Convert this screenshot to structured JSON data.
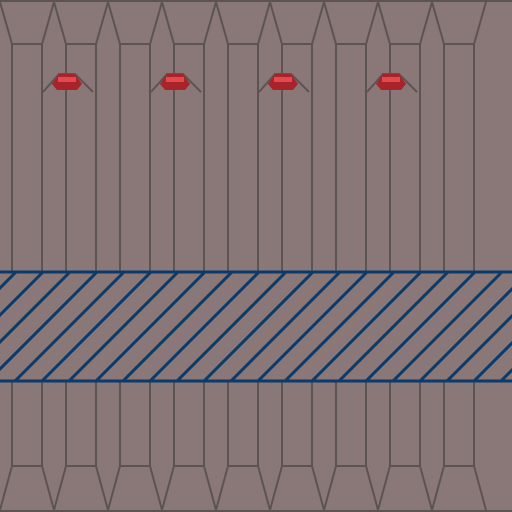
{
  "scene": {
    "palette": {
      "floor": "#8a7878",
      "line": "#5d5352",
      "water_line": "#0b3a6b",
      "light_dark": "#a8242a",
      "light_bright": "#e04a4f"
    },
    "columns": 9,
    "ceiling_lights": 4,
    "water_band": "hatched"
  }
}
